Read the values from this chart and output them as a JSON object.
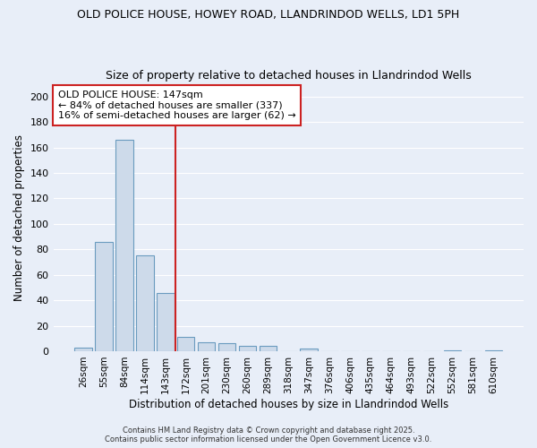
{
  "title1": "OLD POLICE HOUSE, HOWEY ROAD, LLANDRINDOD WELLS, LD1 5PH",
  "title2": "Size of property relative to detached houses in Llandrindod Wells",
  "xlabel": "Distribution of detached houses by size in Llandrindod Wells",
  "ylabel": "Number of detached properties",
  "categories": [
    "26sqm",
    "55sqm",
    "84sqm",
    "114sqm",
    "143sqm",
    "172sqm",
    "201sqm",
    "230sqm",
    "260sqm",
    "289sqm",
    "318sqm",
    "347sqm",
    "376sqm",
    "406sqm",
    "435sqm",
    "464sqm",
    "493sqm",
    "522sqm",
    "552sqm",
    "581sqm",
    "610sqm"
  ],
  "values": [
    3,
    86,
    166,
    75,
    46,
    11,
    7,
    6,
    4,
    4,
    0,
    2,
    0,
    0,
    0,
    0,
    0,
    0,
    1,
    0,
    1
  ],
  "bar_color": "#cddaea",
  "bar_edge_color": "#6a9bbf",
  "red_line_x": 4.5,
  "annotation_text": "OLD POLICE HOUSE: 147sqm\n← 84% of detached houses are smaller (337)\n16% of semi-detached houses are larger (62) →",
  "annotation_box_facecolor": "#ffffff",
  "annotation_box_edgecolor": "#cc2222",
  "annotation_text_color": "#000000",
  "red_line_color": "#cc2222",
  "ylim": [
    0,
    210
  ],
  "yticks": [
    0,
    20,
    40,
    60,
    80,
    100,
    120,
    140,
    160,
    180,
    200
  ],
  "background_color": "#e8eef8",
  "grid_color": "#ffffff",
  "footer1": "Contains HM Land Registry data © Crown copyright and database right 2025.",
  "footer2": "Contains public sector information licensed under the Open Government Licence v3.0."
}
